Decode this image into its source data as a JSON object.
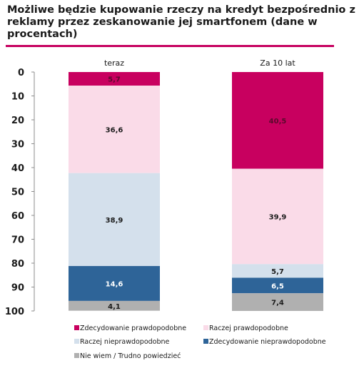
{
  "chart_data": {
    "type": "bar",
    "stacked": true,
    "title": "Możliwe będzie kupowanie rzeczy na kredyt bezpośrednio z reklamy przez zeskanowanie jej smartfonem (dane w procentach)",
    "categories": [
      "teraz",
      "Za 10 lat"
    ],
    "ylim": [
      0,
      100
    ],
    "y_ticks": [
      "0",
      "10",
      "20",
      "30",
      "40",
      "50",
      "60",
      "70",
      "80",
      "90",
      "100"
    ],
    "y_inverted": true,
    "grid": false,
    "legend_position": "bottom",
    "series": [
      {
        "name": "Zdecydowanie prawdopodobne",
        "color": "#c8005f",
        "label_color": "#5a0a2c",
        "values": [
          5.7,
          40.5
        ],
        "labels": [
          "5,7",
          "40,5"
        ]
      },
      {
        "name": "Raczej prawdopodobne",
        "color": "#fadbe8",
        "label_color": "#1a1a1a",
        "values": [
          36.6,
          39.9
        ],
        "labels": [
          "36,6",
          "39,9"
        ]
      },
      {
        "name": "Raczej nieprawdopodobne",
        "color": "#d4e0ec",
        "label_color": "#1a1a1a",
        "values": [
          38.9,
          5.7
        ],
        "labels": [
          "38,9",
          "5,7"
        ]
      },
      {
        "name": "Zdecydowanie nieprawdopodobne",
        "color": "#2e6498",
        "label_color": "#ffffff",
        "values": [
          14.6,
          6.5
        ],
        "labels": [
          "14,6",
          "6,5"
        ]
      },
      {
        "name": "Nie wiem / Trudno powiedzieć",
        "color": "#b0b0b0",
        "label_color": "#1a1a1a",
        "values": [
          4.1,
          7.4
        ],
        "labels": [
          "4,1",
          "7,4"
        ]
      }
    ]
  }
}
